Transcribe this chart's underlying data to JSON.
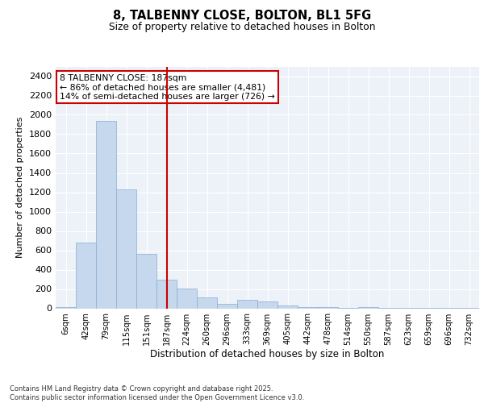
{
  "title1": "8, TALBENNY CLOSE, BOLTON, BL1 5FG",
  "title2": "Size of property relative to detached houses in Bolton",
  "xlabel": "Distribution of detached houses by size in Bolton",
  "ylabel": "Number of detached properties",
  "annotation_title": "8 TALBENNY CLOSE: 187sqm",
  "annotation_line1": "← 86% of detached houses are smaller (4,481)",
  "annotation_line2": "14% of semi-detached houses are larger (726) →",
  "vline_index": 5,
  "bar_values": [
    10,
    680,
    1940,
    1230,
    560,
    300,
    205,
    115,
    45,
    85,
    75,
    30,
    15,
    10,
    5,
    10,
    5,
    2,
    2,
    1,
    1
  ],
  "bin_labels": [
    "6sqm",
    "42sqm",
    "79sqm",
    "115sqm",
    "151sqm",
    "187sqm",
    "224sqm",
    "260sqm",
    "296sqm",
    "333sqm",
    "369sqm",
    "405sqm",
    "442sqm",
    "478sqm",
    "514sqm",
    "550sqm",
    "587sqm",
    "623sqm",
    "659sqm",
    "696sqm",
    "732sqm"
  ],
  "bar_color": "#c5d8ed",
  "bar_edge_color": "#8aabcf",
  "vline_color": "#cc0000",
  "annotation_box_edge_color": "#cc0000",
  "background_color": "#edf2f9",
  "grid_color": "#ffffff",
  "ylim": [
    0,
    2500
  ],
  "yticks": [
    0,
    200,
    400,
    600,
    800,
    1000,
    1200,
    1400,
    1600,
    1800,
    2000,
    2200,
    2400
  ],
  "footer_line1": "Contains HM Land Registry data © Crown copyright and database right 2025.",
  "footer_line2": "Contains public sector information licensed under the Open Government Licence v3.0."
}
